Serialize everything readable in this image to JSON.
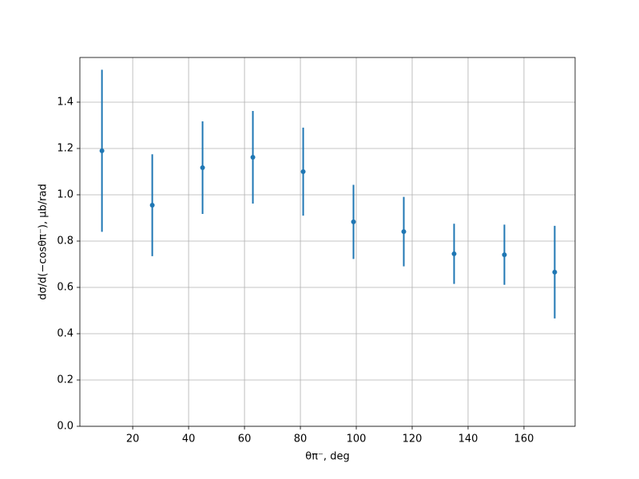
{
  "chart_data": {
    "type": "errorbar",
    "xlabel": "θπ⁻, deg",
    "ylabel": "dσ/d(−cosθπ⁻), μb/rad",
    "x": [
      9,
      27,
      45,
      63,
      81,
      99,
      117,
      135,
      153,
      171
    ],
    "values": [
      1.19,
      0.955,
      1.117,
      1.162,
      1.1,
      0.883,
      0.841,
      0.745,
      0.741,
      0.666
    ],
    "errors": [
      0.35,
      0.22,
      0.2,
      0.2,
      0.19,
      0.16,
      0.15,
      0.13,
      0.13,
      0.2
    ],
    "color": "#1f77b4",
    "xlim": [
      1.1,
      178.3
    ],
    "ylim": [
      0,
      1.593
    ],
    "xticks": [
      20,
      40,
      60,
      80,
      100,
      120,
      140,
      160
    ],
    "yticks": [
      {
        "value": 0,
        "label": "0.0"
      },
      0.2,
      0.4,
      0.6,
      0.8,
      {
        "value": 1,
        "label": "1.0"
      },
      1.2,
      1.4
    ],
    "grid": true
  }
}
